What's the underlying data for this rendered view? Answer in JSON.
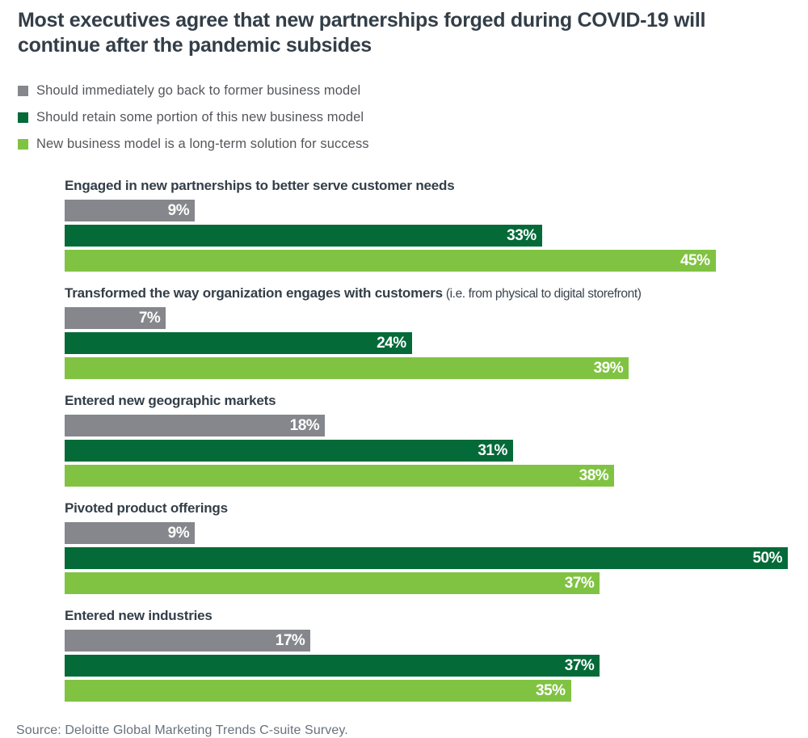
{
  "header": {
    "title": "Most executives agree that new partnerships forged during COVID-19 will continue after the pandemic subsides"
  },
  "chart_data": {
    "type": "bar",
    "orientation": "horizontal",
    "unit": "%",
    "axis_max": 50,
    "grid": false,
    "legend_position": "top-left",
    "value_labels": "inside-end",
    "categories": [
      {
        "label": "Engaged in new partnerships to better serve customer needs",
        "note": ""
      },
      {
        "label": "Transformed the way organization engages with customers",
        "note": "(i.e. from physical to digital storefront)"
      },
      {
        "label": "Entered new geographic markets",
        "note": ""
      },
      {
        "label": "Pivoted product offerings",
        "note": ""
      },
      {
        "label": "Entered new industries",
        "note": ""
      }
    ],
    "series": [
      {
        "name": "Should immediately go back to former business model",
        "color": "#85878C",
        "values": [
          9,
          7,
          18,
          9,
          17
        ]
      },
      {
        "name": "Should retain some portion of this new business model",
        "color": "#046A38",
        "values": [
          33,
          24,
          31,
          50,
          37
        ]
      },
      {
        "name": "New business model is a long-term solution for success",
        "color": "#80C342",
        "values": [
          45,
          39,
          38,
          37,
          35
        ]
      }
    ]
  },
  "footer": {
    "source": "Source: Deloitte Global Marketing Trends C-suite Survey."
  }
}
